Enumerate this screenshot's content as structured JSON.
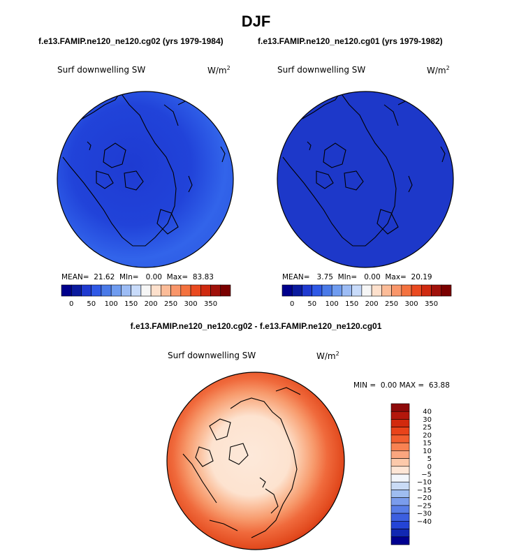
{
  "figure": {
    "title": "DJF",
    "left_case": "f.e13.FAMIP.ne120_ne120.cg02 (yrs 1979-1984)",
    "right_case": "f.e13.FAMIP.ne120_ne120.cg01 (yrs 1979-1982)",
    "diff_case": "f.e13.FAMIP.ne120_ne120.cg02 - f.e13.FAMIP.ne120_ne120.cg01"
  },
  "chart_data": [
    {
      "type": "heatmap",
      "projection": "polar-stereographic-north",
      "variable": "Surf downwelling SW",
      "units": "W/m",
      "units_sup": "2",
      "stats": {
        "mean_label": "MEAN=",
        "mean": "21.62",
        "min_label": "MIn=",
        "min": "0.00",
        "max_label": "Max=",
        "max": "83.83"
      },
      "colorbar": {
        "orientation": "horizontal",
        "tick_labels": [
          "0",
          "50",
          "100",
          "150",
          "200",
          "250",
          "300",
          "350"
        ],
        "colors": [
          "#00008c",
          "#0a1a9e",
          "#1f3ad0",
          "#2f59e6",
          "#4a7ae8",
          "#6f9cf0",
          "#9cbcf5",
          "#c8dbfa",
          "#f6f6f6",
          "#fde0cc",
          "#fcbc98",
          "#f9966a",
          "#f4723f",
          "#ea4a20",
          "#cf2a10",
          "#a0110a",
          "#7a0000"
        ]
      }
    },
    {
      "type": "heatmap",
      "projection": "polar-stereographic-north",
      "variable": "Surf downwelling SW",
      "units": "W/m",
      "units_sup": "2",
      "stats": {
        "mean_label": "MEAN=",
        "mean": "3.75",
        "min_label": "MIn=",
        "min": "0.00",
        "max_label": "Max=",
        "max": "20.19"
      },
      "colorbar": {
        "orientation": "horizontal",
        "tick_labels": [
          "0",
          "50",
          "100",
          "150",
          "200",
          "250",
          "300",
          "350"
        ],
        "colors": [
          "#00008c",
          "#0a1a9e",
          "#1f3ad0",
          "#2f59e6",
          "#4a7ae8",
          "#6f9cf0",
          "#9cbcf5",
          "#c8dbfa",
          "#f6f6f6",
          "#fde0cc",
          "#fcbc98",
          "#f9966a",
          "#f4723f",
          "#ea4a20",
          "#cf2a10",
          "#a0110a",
          "#7a0000"
        ]
      }
    },
    {
      "type": "heatmap",
      "projection": "polar-stereographic-north",
      "variable": "Surf downwelling SW",
      "units": "W/m",
      "units_sup": "2",
      "stats": {
        "min_label": "MIN =",
        "min": "0.00",
        "max_label": "MAX =",
        "max": "63.88"
      },
      "colorbar": {
        "orientation": "vertical",
        "tick_labels": [
          "40",
          "30",
          "25",
          "20",
          "15",
          "10",
          "5",
          "0",
          "−5",
          "−10",
          "−15",
          "−20",
          "−25",
          "−30",
          "−40"
        ],
        "colors": [
          "#8e0a0a",
          "#b3170c",
          "#d22a0e",
          "#e9431a",
          "#f25e2f",
          "#f88252",
          "#fba67f",
          "#fcc9aa",
          "#fde6d6",
          "#f2f6fb",
          "#c9dbf5",
          "#9fbdf0",
          "#7a9cec",
          "#587de7",
          "#3c5fe0",
          "#2444d6",
          "#1128b2",
          "#000090"
        ]
      }
    }
  ]
}
